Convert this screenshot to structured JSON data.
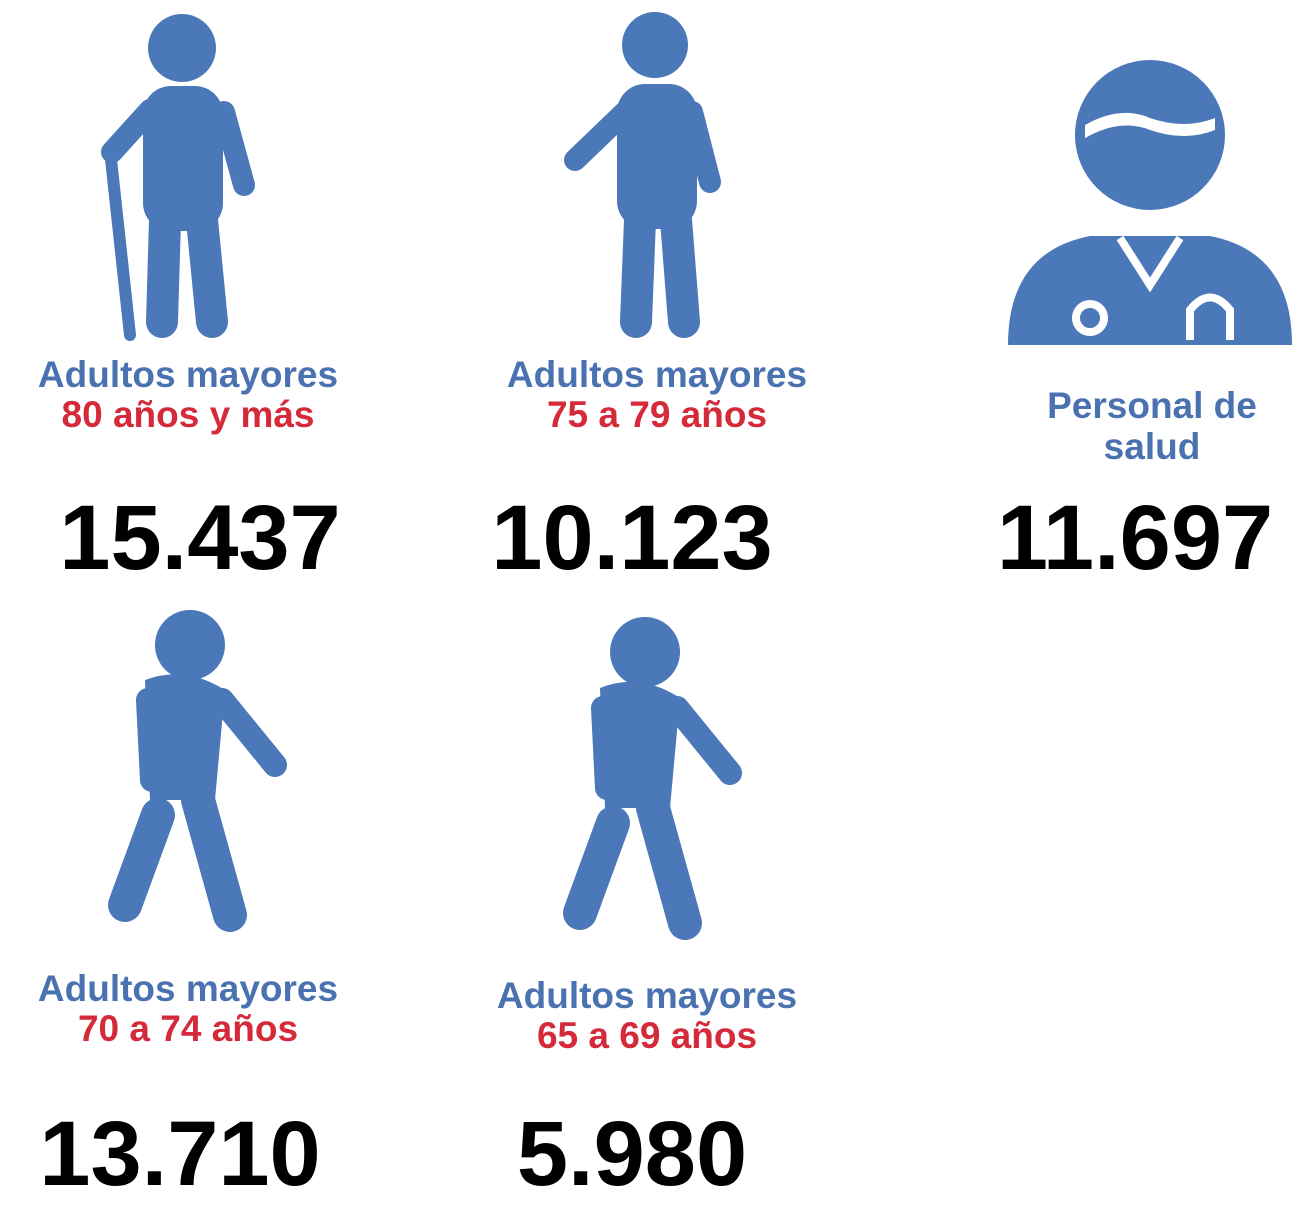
{
  "items": [
    {
      "label": "Adultos mayores",
      "sublabel": "80 años y más",
      "count": "15.437"
    },
    {
      "label": "Adultos mayores",
      "sublabel": "75 a 79 años",
      "count": "10.123"
    },
    {
      "label": "Personal de salud",
      "count": "11.697"
    },
    {
      "label": "Adultos mayores",
      "sublabel": "70 a 74 años",
      "count": "13.710"
    },
    {
      "label": "Adultos mayores",
      "sublabel": "65 a 69 años",
      "count": "5.980"
    }
  ]
}
